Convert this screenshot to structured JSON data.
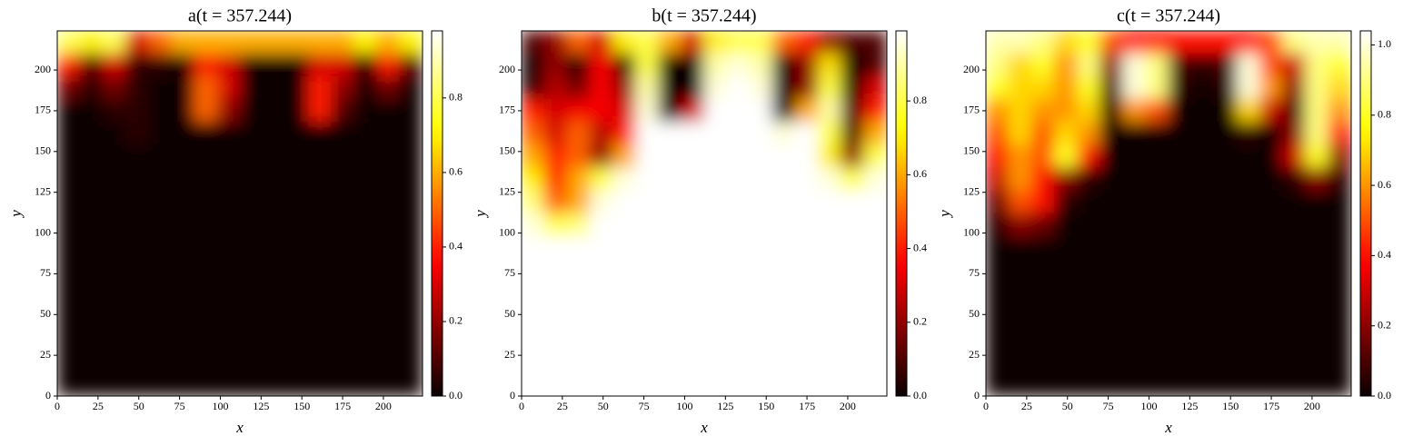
{
  "chart_data": [
    {
      "type": "heatmap",
      "title": "a(t = 357.244)",
      "x_label": "x",
      "y_label": "y",
      "colormap": "hot",
      "xlim": [
        0,
        224
      ],
      "ylim": [
        0,
        224
      ],
      "xticks": [
        0,
        25,
        50,
        75,
        100,
        125,
        150,
        175,
        200
      ],
      "yticks": [
        0,
        25,
        50,
        75,
        100,
        125,
        150,
        175,
        200
      ],
      "zlim": [
        0,
        0.98
      ],
      "zticks": [
        {
          "value": 0,
          "label": "0.0"
        },
        {
          "value": 0.2,
          "label": "0.2"
        },
        {
          "value": 0.4,
          "label": "0.4"
        },
        {
          "value": 0.6,
          "label": "0.6"
        },
        {
          "value": 0.8,
          "label": "0.8"
        }
      ],
      "z": [
        [
          0.8,
          0.7,
          0.8,
          0.3,
          0.5,
          0.6,
          0.6,
          0.6,
          0.6,
          0.6,
          0.6,
          0.6,
          0.6,
          0.7,
          0.6,
          0.7
        ],
        [
          0.4,
          0.1,
          0.3,
          0.05,
          0.05,
          0,
          0.4,
          0.3,
          0,
          0,
          0,
          0.3,
          0.3,
          0.02,
          0.4,
          0.1
        ],
        [
          0.15,
          0.05,
          0.15,
          0.05,
          0,
          0,
          0.5,
          0.3,
          0,
          0,
          0,
          0.4,
          0.2,
          0,
          0.15,
          0
        ],
        [
          0,
          0,
          0.05,
          0.05,
          0,
          0,
          0.5,
          0.2,
          0,
          0,
          0,
          0.4,
          0.1,
          0,
          0,
          0
        ],
        [
          0,
          0,
          0,
          0.05,
          0,
          0,
          0,
          0,
          0,
          0,
          0,
          0,
          0,
          0,
          0,
          0
        ],
        [
          0,
          0,
          0,
          0,
          0,
          0,
          0,
          0,
          0,
          0,
          0,
          0,
          0,
          0,
          0,
          0
        ],
        [
          0,
          0,
          0,
          0,
          0,
          0,
          0,
          0,
          0,
          0,
          0,
          0,
          0,
          0,
          0,
          0
        ],
        [
          0,
          0,
          0,
          0,
          0,
          0,
          0,
          0,
          0,
          0,
          0,
          0,
          0,
          0,
          0,
          0
        ],
        [
          0,
          0,
          0,
          0,
          0,
          0,
          0,
          0,
          0,
          0,
          0,
          0,
          0,
          0,
          0,
          0
        ],
        [
          0,
          0,
          0,
          0,
          0,
          0,
          0,
          0,
          0,
          0,
          0,
          0,
          0,
          0,
          0,
          0
        ],
        [
          0,
          0,
          0,
          0,
          0,
          0,
          0,
          0,
          0,
          0,
          0,
          0,
          0,
          0,
          0,
          0
        ],
        [
          0,
          0,
          0,
          0,
          0,
          0,
          0,
          0,
          0,
          0,
          0,
          0,
          0,
          0,
          0,
          0
        ],
        [
          0,
          0,
          0,
          0,
          0,
          0,
          0,
          0,
          0,
          0,
          0,
          0,
          0,
          0,
          0,
          0
        ],
        [
          0,
          0,
          0,
          0,
          0,
          0,
          0,
          0,
          0,
          0,
          0,
          0,
          0,
          0,
          0,
          0
        ],
        [
          0,
          0,
          0,
          0,
          0,
          0,
          0,
          0,
          0,
          0,
          0,
          0,
          0,
          0,
          0,
          0
        ],
        [
          0,
          0,
          0,
          0,
          0,
          0,
          0,
          0,
          0,
          0,
          0,
          0,
          0,
          0,
          0,
          0
        ]
      ]
    },
    {
      "type": "heatmap",
      "title": "b(t = 357.244)",
      "x_label": "x",
      "y_label": "y",
      "colormap": "hot",
      "xlim": [
        0,
        224
      ],
      "ylim": [
        0,
        224
      ],
      "xticks": [
        0,
        25,
        50,
        75,
        100,
        125,
        150,
        175,
        200
      ],
      "yticks": [
        0,
        25,
        50,
        75,
        100,
        125,
        150,
        175,
        200
      ],
      "zlim": [
        0,
        0.99
      ],
      "zticks": [
        {
          "value": 0,
          "label": "0.0"
        },
        {
          "value": 0.2,
          "label": "0.2"
        },
        {
          "value": 0.4,
          "label": "0.4"
        },
        {
          "value": 0.6,
          "label": "0.6"
        },
        {
          "value": 0.8,
          "label": "0.8"
        }
      ],
      "z": [
        [
          0.1,
          0.2,
          0.5,
          0.3,
          0.7,
          0.8,
          0.6,
          0.3,
          0.7,
          0.8,
          0.8,
          0.5,
          0.4,
          0.2,
          0.1,
          0.1
        ],
        [
          0,
          0.2,
          0,
          0.35,
          0.05,
          0.8,
          0,
          0,
          0.9,
          0.95,
          0.9,
          0,
          0.2,
          0.68,
          0,
          0.1
        ],
        [
          0.05,
          0.25,
          0.15,
          0.35,
          0.2,
          0.9,
          0,
          0,
          0.95,
          1,
          0.95,
          0,
          0.2,
          0.8,
          0,
          0.3
        ],
        [
          0.4,
          0.3,
          0.35,
          0.35,
          0.3,
          0.95,
          0,
          0.3,
          1,
          1,
          1,
          0,
          0.6,
          0.9,
          0.1,
          0.4
        ],
        [
          0.5,
          0.3,
          0.5,
          0.25,
          0.4,
          1,
          1,
          1,
          1,
          1,
          1,
          0.95,
          1,
          0.8,
          0.1,
          0.6
        ],
        [
          0.6,
          0.4,
          0.5,
          0.2,
          0.6,
          1,
          1,
          1,
          1,
          1,
          1,
          1,
          1,
          0.7,
          0.2,
          0.8
        ],
        [
          0.7,
          0.4,
          0.6,
          0.8,
          0.95,
          1,
          1,
          1,
          1,
          1,
          1,
          1,
          1,
          0.95,
          0.8,
          0.95
        ],
        [
          0.85,
          0.5,
          0.6,
          0.95,
          1,
          1,
          1,
          1,
          1,
          1,
          1,
          1,
          1,
          1,
          1,
          1
        ],
        [
          0.95,
          0.8,
          0.85,
          1,
          1,
          1,
          1,
          1,
          1,
          1,
          1,
          1,
          1,
          1,
          1,
          1
        ],
        [
          1,
          1,
          1,
          1,
          1,
          1,
          1,
          1,
          1,
          1,
          1,
          1,
          1,
          1,
          1,
          1
        ],
        [
          1,
          1,
          1,
          1,
          1,
          1,
          1,
          1,
          1,
          1,
          1,
          1,
          1,
          1,
          1,
          1
        ],
        [
          1,
          1,
          1,
          1,
          1,
          1,
          1,
          1,
          1,
          1,
          1,
          1,
          1,
          1,
          1,
          1
        ],
        [
          1,
          1,
          1,
          1,
          1,
          1,
          1,
          1,
          1,
          1,
          1,
          1,
          1,
          1,
          1,
          1
        ],
        [
          1,
          1,
          1,
          1,
          1,
          1,
          1,
          1,
          1,
          1,
          1,
          1,
          1,
          1,
          1,
          1
        ],
        [
          1,
          1,
          1,
          1,
          1,
          1,
          1,
          1,
          1,
          1,
          1,
          1,
          1,
          1,
          1,
          1
        ],
        [
          1,
          1,
          1,
          1,
          1,
          1,
          1,
          1,
          1,
          1,
          1,
          1,
          1,
          1,
          1,
          1
        ]
      ]
    },
    {
      "type": "heatmap",
      "title": "c(t = 357.244)",
      "x_label": "x",
      "y_label": "y",
      "colormap": "hot",
      "xlim": [
        0,
        224
      ],
      "ylim": [
        0,
        224
      ],
      "xticks": [
        0,
        25,
        50,
        75,
        100,
        125,
        150,
        175,
        200
      ],
      "yticks": [
        0,
        25,
        50,
        75,
        100,
        125,
        150,
        175,
        200
      ],
      "zlim": [
        0,
        1.04
      ],
      "zticks": [
        {
          "value": 0,
          "label": "0.0"
        },
        {
          "value": 0.2,
          "label": "0.2"
        },
        {
          "value": 0.4,
          "label": "0.4"
        },
        {
          "value": 0.6,
          "label": "0.6"
        },
        {
          "value": 0.8,
          "label": "0.8"
        },
        {
          "value": 1,
          "label": "1.0"
        }
      ],
      "z": [
        [
          0.95,
          0.95,
          0.9,
          0.7,
          0.8,
          0.5,
          0.4,
          0.4,
          0.4,
          0.4,
          0.4,
          0.4,
          0.5,
          0.9,
          0.95,
          0.95
        ],
        [
          0.9,
          0.7,
          0.8,
          0.6,
          0.9,
          0.2,
          1,
          0.9,
          0.1,
          0.05,
          0.1,
          1,
          0.5,
          0.3,
          0.9,
          0.8
        ],
        [
          0.8,
          0.7,
          0.7,
          0.6,
          0.8,
          0.1,
          1,
          0.9,
          0.05,
          0,
          0.05,
          1,
          0.6,
          0.2,
          0.9,
          0.7
        ],
        [
          0.6,
          0.7,
          0.6,
          0.6,
          0.7,
          0.05,
          0.6,
          0.5,
          0,
          0,
          0,
          0.7,
          0.3,
          0.1,
          0.9,
          0.6
        ],
        [
          0.5,
          0.7,
          0.5,
          0.7,
          0.6,
          0,
          0,
          0,
          0,
          0,
          0,
          0.05,
          0,
          0.2,
          0.9,
          0.4
        ],
        [
          0.4,
          0.6,
          0.5,
          0.8,
          0.4,
          0,
          0,
          0,
          0,
          0,
          0,
          0,
          0,
          0.3,
          0.8,
          0.2
        ],
        [
          0.3,
          0.6,
          0.4,
          0.2,
          0.05,
          0,
          0,
          0,
          0,
          0,
          0,
          0,
          0,
          0.05,
          0.2,
          0.05
        ],
        [
          0.15,
          0.5,
          0.4,
          0.05,
          0,
          0,
          0,
          0,
          0,
          0,
          0,
          0,
          0,
          0,
          0,
          0
        ],
        [
          0.05,
          0.2,
          0.15,
          0,
          0,
          0,
          0,
          0,
          0,
          0,
          0,
          0,
          0,
          0,
          0,
          0
        ],
        [
          0,
          0,
          0,
          0,
          0,
          0,
          0,
          0,
          0,
          0,
          0,
          0,
          0,
          0,
          0,
          0
        ],
        [
          0,
          0,
          0,
          0,
          0,
          0,
          0,
          0,
          0,
          0,
          0,
          0,
          0,
          0,
          0,
          0
        ],
        [
          0,
          0,
          0,
          0,
          0,
          0,
          0,
          0,
          0,
          0,
          0,
          0,
          0,
          0,
          0,
          0
        ],
        [
          0,
          0,
          0,
          0,
          0,
          0,
          0,
          0,
          0,
          0,
          0,
          0,
          0,
          0,
          0,
          0
        ],
        [
          0,
          0,
          0,
          0,
          0,
          0,
          0,
          0,
          0,
          0,
          0,
          0,
          0,
          0,
          0,
          0
        ],
        [
          0,
          0,
          0,
          0,
          0,
          0,
          0,
          0,
          0,
          0,
          0,
          0,
          0,
          0,
          0,
          0
        ],
        [
          0,
          0,
          0,
          0,
          0,
          0,
          0,
          0,
          0,
          0,
          0,
          0,
          0,
          0,
          0,
          0
        ]
      ]
    }
  ]
}
